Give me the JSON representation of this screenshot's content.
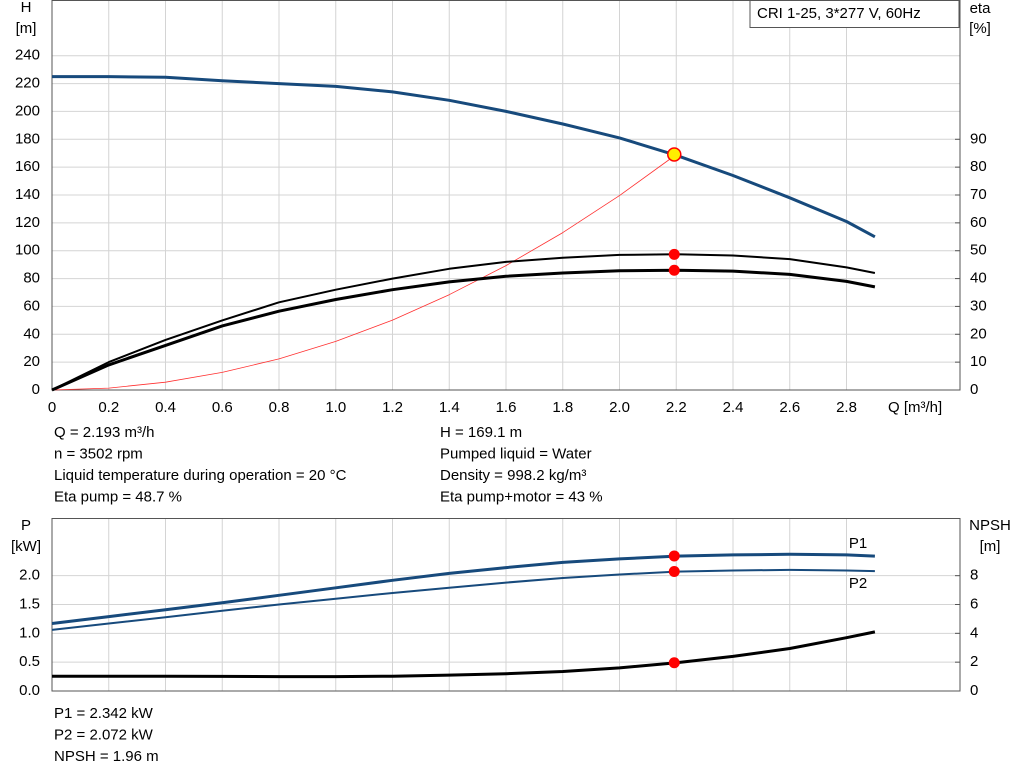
{
  "chart_data": [
    {
      "type": "line",
      "title": "CRI 1-25, 3*277 V, 60Hz",
      "ylabel": [
        "H",
        "[m]"
      ],
      "y2label": [
        "eta",
        "[%]"
      ],
      "xlabel": "Q [m³/h]",
      "x": [
        0,
        0.2,
        0.4,
        0.6,
        0.8,
        1.0,
        1.2,
        1.4,
        1.6,
        1.8,
        2.0,
        2.2,
        2.4,
        2.6,
        2.8,
        2.9
      ],
      "xlim": [
        0,
        3.2
      ],
      "xticks": [
        0,
        0.2,
        0.4,
        0.6,
        0.8,
        {
          "value": 1.0,
          "label": "1.0"
        },
        1.2,
        1.4,
        1.6,
        1.8,
        {
          "value": 2.0,
          "label": "2.0"
        },
        2.2,
        2.4,
        2.6,
        2.8
      ],
      "ylim": [
        0,
        280
      ],
      "yticks": [
        0,
        20,
        40,
        60,
        80,
        100,
        120,
        140,
        160,
        180,
        200,
        220,
        240
      ],
      "y2lim": [
        0,
        140
      ],
      "y2ticks": [
        0,
        10,
        20,
        30,
        40,
        50,
        60,
        70,
        80,
        90
      ],
      "grid": true,
      "series": [
        {
          "color": "#174a7c",
          "width": 3,
          "values": [
            225,
            225,
            224.5,
            222,
            220,
            218,
            214,
            208,
            200,
            191,
            181,
            168.5,
            154,
            138,
            121,
            110
          ]
        },
        {
          "color": "#ff3030",
          "width": 0.8,
          "values": [
            0,
            1.4,
            5.6,
            12.6,
            22.3,
            34.9,
            50.2,
            68.4,
            89.3,
            113,
            139.6,
            169.1,
            null,
            null,
            null,
            null
          ]
        },
        {
          "color": "#000000",
          "width": 2,
          "axis": "y2",
          "values": [
            0,
            10,
            18,
            25,
            31.5,
            36,
            40,
            43.5,
            46,
            47.5,
            48.5,
            48.7,
            48.3,
            47,
            44,
            42
          ]
        },
        {
          "color": "#000000",
          "width": 3,
          "axis": "y2",
          "values": [
            0,
            9,
            16,
            23,
            28.3,
            32.5,
            36,
            38.8,
            40.8,
            42,
            42.8,
            43,
            42.7,
            41.5,
            39,
            37
          ]
        }
      ],
      "markers": [
        {
          "x": 2.193,
          "y": 169.1,
          "color": "#ffee00"
        },
        {
          "x": 2.193,
          "y": 48.7,
          "axis": "y2",
          "color": "#ff0000"
        },
        {
          "x": 2.193,
          "y": 43,
          "axis": "y2",
          "color": "#ff0000"
        }
      ],
      "info": {
        "left": [
          "Q = 2.193 m³/h",
          "n = 3502 rpm",
          "Liquid temperature during operation = 20 °C",
          "Eta pump = 48.7 %"
        ],
        "right": [
          "H = 169.1 m",
          "Pumped liquid = Water",
          "Density = 998.2 kg/m³",
          "Eta pump+motor = 43 %"
        ]
      }
    },
    {
      "type": "line",
      "ylabel": [
        "P",
        "[kW]"
      ],
      "y2label": [
        "NPSH",
        "[m]"
      ],
      "x": [
        0,
        0.2,
        0.4,
        0.6,
        0.8,
        1.0,
        1.2,
        1.4,
        1.6,
        1.8,
        2.0,
        2.2,
        2.4,
        2.6,
        2.8,
        2.9
      ],
      "xlim": [
        0,
        3.2
      ],
      "xticks": [
        0,
        0.2,
        0.4,
        0.6,
        0.8,
        1.0,
        1.2,
        1.4,
        1.6,
        1.8,
        2.0,
        2.2,
        2.4,
        2.6,
        2.8
      ],
      "ylim": [
        0,
        3.0
      ],
      "yticks": [
        {
          "value": 0,
          "label": "0.0"
        },
        0.5,
        {
          "value": 1,
          "label": "1.0"
        },
        1.5,
        {
          "value": 2,
          "label": "2.0"
        }
      ],
      "y2lim": [
        0,
        12
      ],
      "y2ticks": [
        0,
        2,
        4,
        6,
        8
      ],
      "grid": true,
      "series": [
        {
          "name": "P1",
          "color": "#174a7c",
          "width": 3,
          "values": [
            1.17,
            1.29,
            1.41,
            1.53,
            1.66,
            1.79,
            1.92,
            2.04,
            2.14,
            2.23,
            2.29,
            2.34,
            2.36,
            2.37,
            2.36,
            2.34
          ]
        },
        {
          "name": "P2",
          "color": "#174a7c",
          "width": 2,
          "values": [
            1.06,
            1.17,
            1.28,
            1.39,
            1.5,
            1.6,
            1.7,
            1.79,
            1.88,
            1.96,
            2.02,
            2.07,
            2.09,
            2.1,
            2.09,
            2.08
          ]
        },
        {
          "color": "#000000",
          "width": 3,
          "axis": "y2",
          "values": [
            1.02,
            1.02,
            1.02,
            1.01,
            1.0,
            1.0,
            1.03,
            1.1,
            1.2,
            1.35,
            1.6,
            1.96,
            2.4,
            2.95,
            3.7,
            4.1
          ]
        }
      ],
      "markers": [
        {
          "x": 2.193,
          "y": 2.342,
          "color": "#ff0000"
        },
        {
          "x": 2.193,
          "y": 2.072,
          "color": "#ff0000"
        },
        {
          "x": 2.193,
          "y": 1.96,
          "axis": "y2",
          "color": "#ff0000"
        }
      ],
      "info": {
        "left": [
          "P1 = 2.342 kW",
          "P2 = 2.072 kW",
          "NPSH = 1.96 m"
        ]
      }
    }
  ]
}
